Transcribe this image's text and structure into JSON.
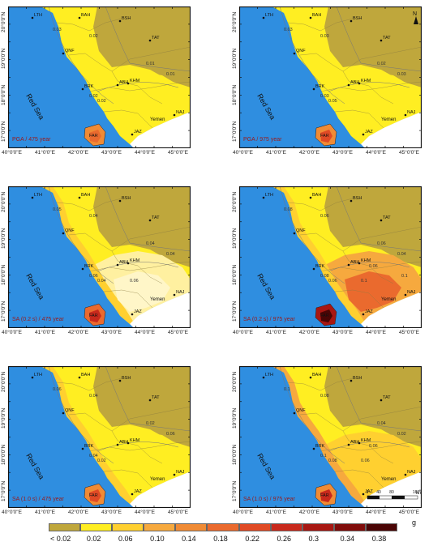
{
  "panels": [
    {
      "title": "PGA / 475 year"
    },
    {
      "title": "PGA / 975 year"
    },
    {
      "title": "SA (0.2 s) / 475 year"
    },
    {
      "title": "SA (0.2 s) / 975 year"
    },
    {
      "title": "SA (1.0 s) / 475 year"
    },
    {
      "title": "SA (1.0 s) / 975 year"
    }
  ],
  "x_ticks": [
    "40°0'0\"E",
    "41°0'0\"E",
    "42°0'0\"E",
    "43°0'0\"E",
    "44°0'0\"E",
    "45°0'0\"E"
  ],
  "y_ticks": [
    "20°0'0\"N",
    "19°0'0\"N",
    "18°0'0\"N",
    "17°0'0\"N"
  ],
  "places": {
    "lth": "LTH",
    "bah": "BAH",
    "bsh": "BSH",
    "tat": "TAT",
    "qnf": "QNF",
    "brk": "BRK",
    "abh": "ABH",
    "khm": "KHM",
    "naj": "NAJ",
    "jaz": "JAZ",
    "far": "FAR",
    "yemen": "Yemen",
    "red_sea": "Red Sea"
  },
  "contours": {
    "p1": [
      "0.03",
      "0.02",
      "0.01",
      "0.01",
      "0.02",
      "0.02"
    ],
    "p2": [
      "0.03",
      "0.03",
      "0.02",
      "0.03",
      "0.03",
      "0.05"
    ],
    "p3": [
      "0.05",
      "0.04",
      "0.04",
      "0.04",
      "0.06",
      "0.04",
      "0.06"
    ],
    "p4": [
      "0.08",
      "0.06",
      "0.06",
      "0.04",
      "0.08",
      "0.06",
      "0.1",
      "0.06",
      "0.1"
    ],
    "p5": [
      "0.06",
      "0.04",
      "0.02",
      "0.06",
      "0.04",
      "0.02"
    ],
    "p6": [
      "0.1",
      "0.08",
      "0.04",
      "0.02",
      "0.1",
      "0.08",
      "0.06",
      "0.06"
    ]
  },
  "north_label": "N",
  "scale_bar": {
    "labels": [
      "0",
      "40",
      "80",
      "160"
    ],
    "unit": "km"
  },
  "legend": {
    "labels": [
      "< 0.02",
      "0.02",
      "0.06",
      "0.10",
      "0.14",
      "0.18",
      "0.22",
      "0.26",
      "0.3",
      "0.34",
      "0.38"
    ],
    "colors": [
      "#bfa73c",
      "#ffee22",
      "#ffd030",
      "#f6a93e",
      "#f08b35",
      "#ea6a2e",
      "#e04a25",
      "#c8291c",
      "#a81712",
      "#800c0a",
      "#4a0505"
    ],
    "unit": "g"
  }
}
